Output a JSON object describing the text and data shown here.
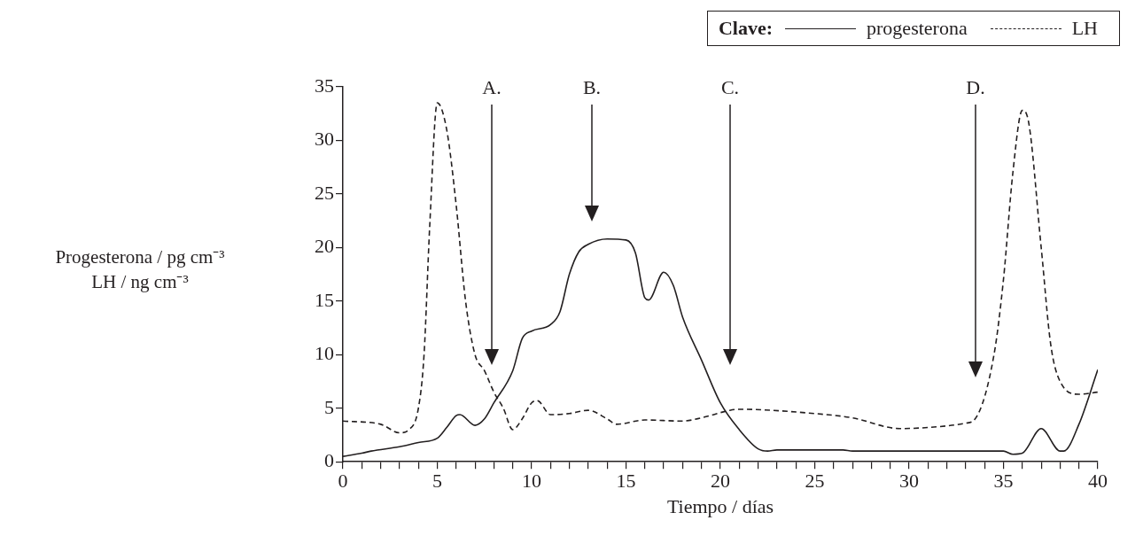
{
  "chart_data": {
    "type": "line",
    "xlabel": "Tiempo / días",
    "ylabel": "Progesterona / pg cm⁻³\nLH / ng cm⁻³",
    "legend_title": "Clave:",
    "legend": "top right",
    "marker": "none",
    "xlim": [
      0,
      40
    ],
    "ylim": [
      0,
      35
    ],
    "xticks": [
      0,
      {
        "value": 1,
        "label": null
      },
      {
        "value": 2,
        "label": null
      },
      {
        "value": 3,
        "label": null
      },
      {
        "value": 4,
        "label": null
      },
      5,
      {
        "value": 6,
        "label": null
      },
      {
        "value": 7,
        "label": null
      },
      {
        "value": 8,
        "label": null
      },
      {
        "value": 9,
        "label": null
      },
      10,
      {
        "value": 11,
        "label": null
      },
      {
        "value": 12,
        "label": null
      },
      {
        "value": 13,
        "label": null
      },
      {
        "value": 14,
        "label": null
      },
      15,
      {
        "value": 16,
        "label": null
      },
      {
        "value": 17,
        "label": null
      },
      {
        "value": 18,
        "label": null
      },
      {
        "value": 19,
        "label": null
      },
      20,
      {
        "value": 21,
        "label": null
      },
      {
        "value": 22,
        "label": null
      },
      {
        "value": 23,
        "label": null
      },
      {
        "value": 24,
        "label": null
      },
      25,
      {
        "value": 26,
        "label": null
      },
      {
        "value": 27,
        "label": null
      },
      {
        "value": 28,
        "label": null
      },
      {
        "value": 29,
        "label": null
      },
      30,
      {
        "value": 31,
        "label": null
      },
      {
        "value": 32,
        "label": null
      },
      {
        "value": 33,
        "label": null
      },
      {
        "value": 34,
        "label": null
      },
      35,
      {
        "value": 36,
        "label": null
      },
      {
        "value": 37,
        "label": null
      },
      {
        "value": 38,
        "label": null
      },
      {
        "value": 39,
        "label": null
      },
      40
    ],
    "yticks": [
      0,
      5,
      10,
      15,
      20,
      25,
      30,
      35
    ],
    "series": [
      {
        "name": "progesterona",
        "color": "#231f20",
        "line_style": "solid",
        "x": [
          0,
          1,
          1.5,
          3,
          4,
          5,
          5.5,
          6,
          6.2,
          7,
          7.5,
          8,
          9,
          9.5,
          10,
          11,
          11.5,
          12,
          12.5,
          13,
          14,
          15,
          15.5,
          16,
          16.2,
          17,
          17.5,
          18,
          19,
          20,
          21,
          22,
          22.5,
          23,
          26.5,
          27,
          35,
          35.5,
          36,
          37,
          38,
          38.2,
          39,
          40
        ],
        "values": [
          0.5,
          0.8,
          1.0,
          1.4,
          1.8,
          2.2,
          3.2,
          4.3,
          4.4,
          3.4,
          4.0,
          5.5,
          8.5,
          11.5,
          12.2,
          12.8,
          14,
          17.5,
          19.6,
          20.3,
          20.8,
          20.7,
          19.5,
          15.3,
          15.1,
          17.7,
          16.5,
          13.5,
          9.5,
          5.5,
          3,
          1.2,
          1,
          1.1,
          1.1,
          1,
          1,
          0.7,
          0.8,
          3.1,
          1.0,
          1.0,
          3.5,
          8.6
        ]
      },
      {
        "name": "LH",
        "color": "#231f20",
        "line_style": "dashed",
        "x": [
          0,
          2,
          3,
          3.5,
          4,
          4.3,
          4.6,
          5,
          5.5,
          6,
          6.5,
          7,
          7.5,
          8,
          8.5,
          9,
          9.5,
          10,
          10.3,
          11,
          12,
          13,
          14,
          14.5,
          16,
          18,
          19,
          20.5,
          21,
          25,
          27,
          29.5,
          31,
          33,
          33.5,
          34.5,
          35,
          35.5,
          36,
          36.3,
          37,
          37.5,
          38,
          39,
          40
        ],
        "values": [
          3.8,
          3.5,
          2.7,
          3,
          5,
          10,
          22,
          33.5,
          31,
          24,
          15,
          10,
          8.5,
          6.5,
          5,
          3,
          4,
          5.5,
          5.7,
          4.4,
          4.5,
          4.8,
          4.0,
          3.5,
          3.9,
          3.8,
          4.1,
          4.8,
          4.9,
          4.5,
          4.1,
          3.1,
          3.2,
          3.6,
          4,
          10,
          17,
          27,
          32.8,
          32,
          20,
          11,
          7.5,
          6.3,
          6.5
        ]
      }
    ],
    "annotations": [
      "A.",
      "B.",
      "C.",
      "D."
    ]
  }
}
